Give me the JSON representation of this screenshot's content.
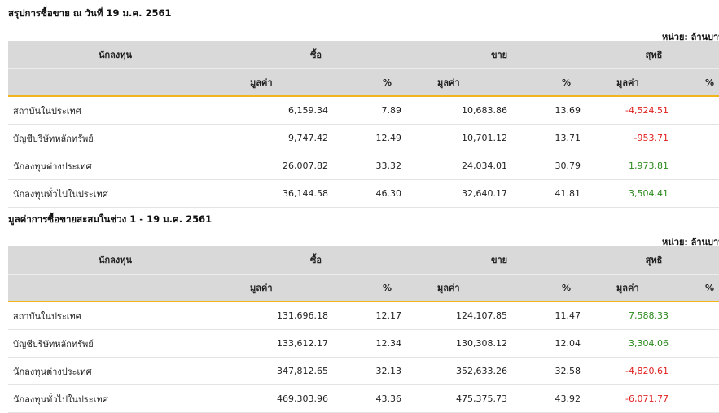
{
  "section1": {
    "title": "สรุปการซื้อขาย ณ วันที่ 19 ม.ค. 2561",
    "unit": "หน่วย: ล้านบาท",
    "headers": {
      "investor": "นักลงทุน",
      "buy": "ซื้อ",
      "sell": "ขาย",
      "net": "สุทธิ",
      "value": "มูลค่า",
      "percent": "%"
    },
    "rows": [
      {
        "name": "สถาบันในประเทศ",
        "buy_value": "6,159.34",
        "buy_pct": "7.89",
        "sell_value": "10,683.86",
        "sell_pct": "13.69",
        "net_value": "-4,524.51"
      },
      {
        "name": "บัญชีบริษัทหลักทรัพย์",
        "buy_value": "9,747.42",
        "buy_pct": "12.49",
        "sell_value": "10,701.12",
        "sell_pct": "13.71",
        "net_value": "-953.71"
      },
      {
        "name": "นักลงทุนต่างประเทศ",
        "buy_value": "26,007.82",
        "buy_pct": "33.32",
        "sell_value": "24,034.01",
        "sell_pct": "30.79",
        "net_value": "1,973.81"
      },
      {
        "name": "นักลงทุนทั่วไปในประเทศ",
        "buy_value": "36,144.58",
        "buy_pct": "46.30",
        "sell_value": "32,640.17",
        "sell_pct": "41.81",
        "net_value": "3,504.41"
      }
    ]
  },
  "section2": {
    "title": "มูลค่าการซื้อขายสะสมในช่วง 1 - 19 ม.ค. 2561",
    "unit": "หน่วย: ล้านบาท",
    "headers": {
      "investor": "นักลงทุน",
      "buy": "ซื้อ",
      "sell": "ขาย",
      "net": "สุทธิ",
      "value": "มูลค่า",
      "percent": "%"
    },
    "rows": [
      {
        "name": "สถาบันในประเทศ",
        "buy_value": "131,696.18",
        "buy_pct": "12.17",
        "sell_value": "124,107.85",
        "sell_pct": "11.47",
        "net_value": "7,588.33"
      },
      {
        "name": "บัญชีบริษัทหลักทรัพย์",
        "buy_value": "133,612.17",
        "buy_pct": "12.34",
        "sell_value": "130,308.12",
        "sell_pct": "12.04",
        "net_value": "3,304.06"
      },
      {
        "name": "นักลงทุนต่างประเทศ",
        "buy_value": "347,812.65",
        "buy_pct": "32.13",
        "sell_value": "352,633.26",
        "sell_pct": "32.58",
        "net_value": "-4,820.61"
      },
      {
        "name": "นักลงทุนทั่วไปในประเทศ",
        "buy_value": "469,303.96",
        "buy_pct": "43.36",
        "sell_value": "475,375.73",
        "sell_pct": "43.92",
        "net_value": "-6,071.77"
      }
    ]
  },
  "colors": {
    "header_bg": "#d9d9d9",
    "accent_line": "#f2b418",
    "negative": "#e02020",
    "positive": "#2c8a1e"
  }
}
